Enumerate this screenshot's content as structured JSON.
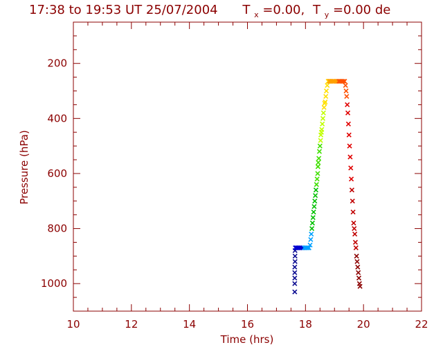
{
  "chart_data": {
    "type": "scatter",
    "title": {
      "main": "17:38 to 19:53 UT 25/07/2004",
      "tx_letter": "T",
      "tx_sub": "x",
      "tx_value": "=0.00,",
      "ty_letter": "T",
      "ty_sub": "y",
      "ty_value": "=0.00 de"
    },
    "xlabel": "Time  (hrs)",
    "ylabel": "Pressure  (hPa)",
    "xlim": [
      10,
      22
    ],
    "ylim": [
      1100,
      50
    ],
    "xticks": [
      "10",
      "12",
      "14",
      "16",
      "18",
      "20",
      "22"
    ],
    "yticks": [
      "200",
      "400",
      "600",
      "800",
      "1000"
    ],
    "marker": "x",
    "axis_color": "#8b0000",
    "x": [
      17.63,
      17.63,
      17.63,
      17.63,
      17.63,
      17.64,
      17.64,
      17.64,
      17.65,
      17.68,
      17.72,
      17.76,
      17.8,
      17.84,
      17.88,
      17.92,
      17.96,
      18.0,
      18.04,
      18.08,
      18.12,
      18.16,
      18.18,
      18.2,
      18.22,
      18.24,
      18.26,
      18.28,
      18.3,
      18.32,
      18.34,
      18.36,
      18.38,
      18.4,
      18.42,
      18.43,
      18.44,
      18.46,
      18.48,
      18.5,
      18.52,
      18.53,
      18.55,
      18.56,
      18.58,
      18.6,
      18.62,
      18.64,
      18.66,
      18.68,
      18.7,
      18.72,
      18.75,
      18.78,
      18.8,
      18.82,
      18.85,
      18.88,
      18.92,
      18.96,
      19.0,
      19.05,
      19.1,
      19.15,
      19.2,
      19.25,
      19.3,
      19.35,
      19.38,
      19.4,
      19.42,
      19.44,
      19.46,
      19.48,
      19.5,
      19.52,
      19.54,
      19.56,
      19.58,
      19.6,
      19.62,
      19.64,
      19.66,
      19.68,
      19.7,
      19.72,
      19.74,
      19.76,
      19.78,
      19.8,
      19.82,
      19.84,
      19.86,
      19.88
    ],
    "y": [
      1030,
      1000,
      980,
      960,
      940,
      920,
      900,
      880,
      870,
      870,
      870,
      870,
      870,
      870,
      870,
      870,
      870,
      870,
      870,
      870,
      870,
      860,
      840,
      820,
      800,
      780,
      760,
      740,
      720,
      700,
      680,
      660,
      640,
      620,
      600,
      575,
      560,
      545,
      520,
      500,
      480,
      460,
      450,
      440,
      420,
      400,
      380,
      360,
      345,
      340,
      320,
      300,
      280,
      265,
      265,
      265,
      265,
      265,
      265,
      265,
      265,
      265,
      265,
      265,
      265,
      265,
      265,
      265,
      280,
      300,
      320,
      350,
      380,
      420,
      460,
      500,
      540,
      580,
      620,
      660,
      700,
      740,
      780,
      800,
      820,
      850,
      870,
      900,
      920,
      940,
      960,
      980,
      1000,
      1010
    ],
    "color_scale": [
      "#0a0a90",
      "#0000d0",
      "#00a0ff",
      "#00c000",
      "#40e000",
      "#c0ff00",
      "#ffe000",
      "#ffa000",
      "#ff5000",
      "#e00000",
      "#c00000",
      "#8b0000"
    ]
  }
}
